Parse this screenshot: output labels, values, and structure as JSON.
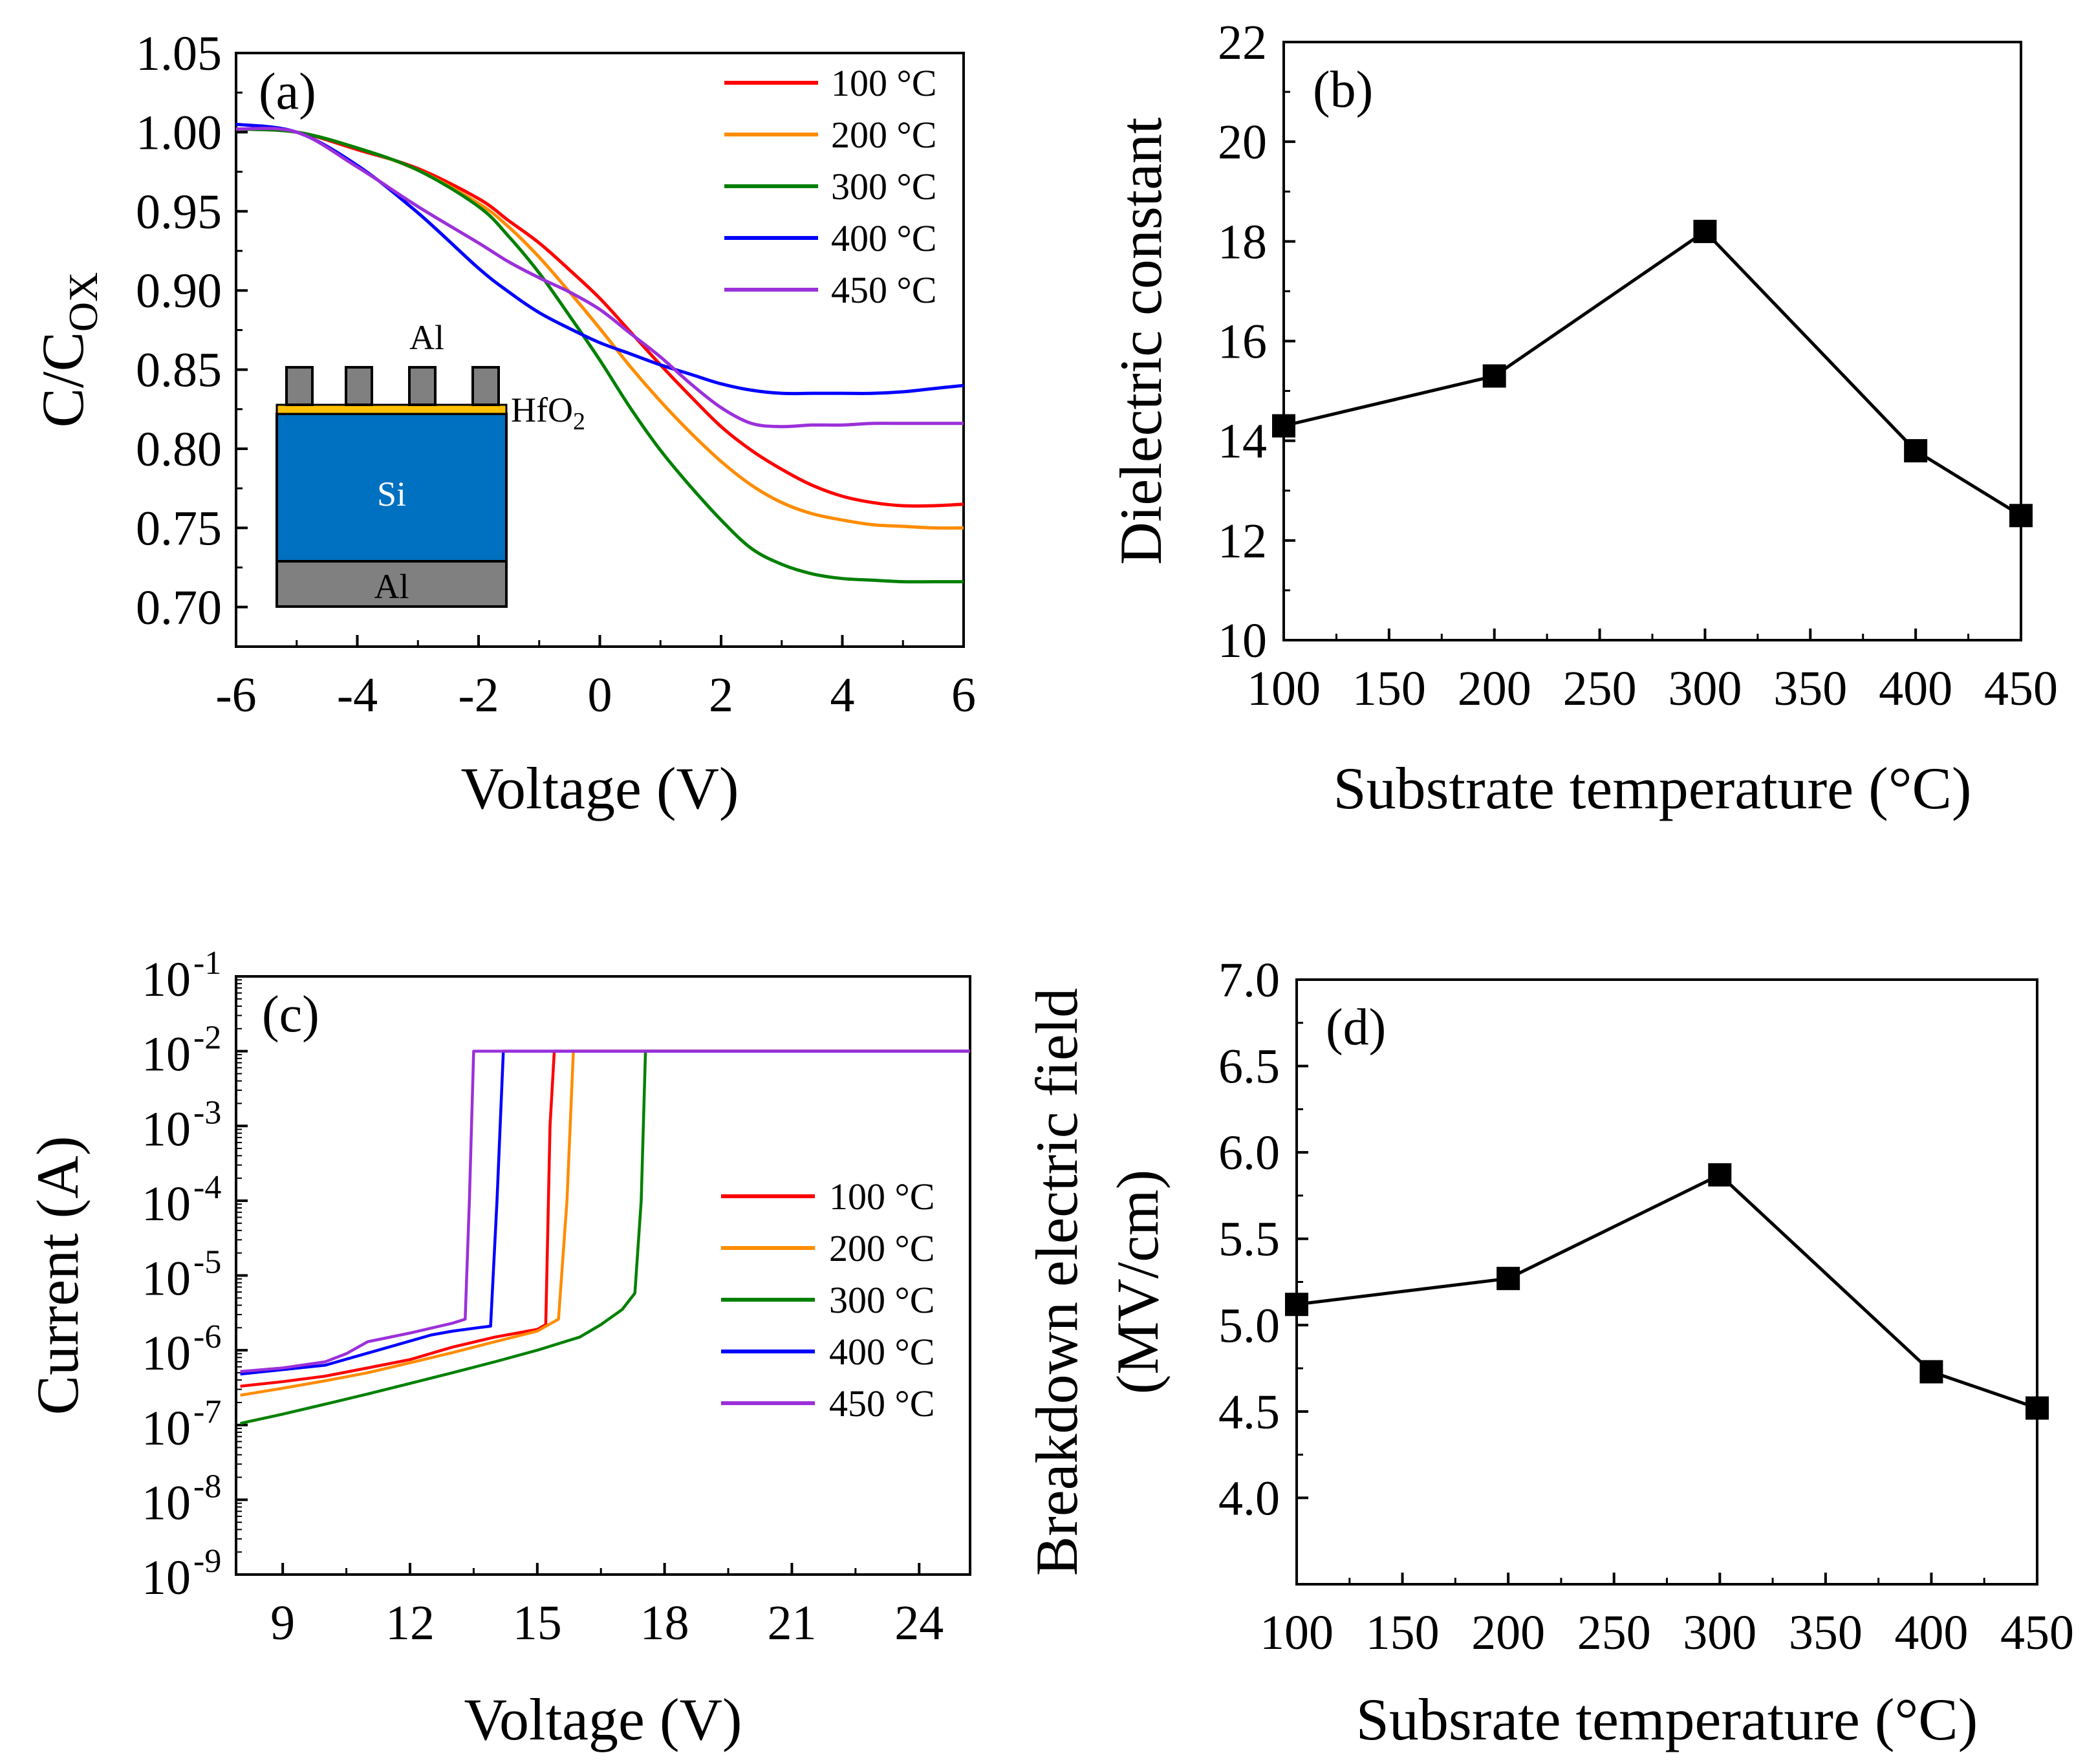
{
  "chart_data": [
    {
      "id": "a",
      "type": "line",
      "panel_label": "(a)",
      "xlabel": "Voltage (V)",
      "ylabel": {
        "base": "C/C",
        "sub": "OX"
      },
      "xlim": [
        -6,
        6
      ],
      "ylim": [
        0.675,
        1.05
      ],
      "xticks": [
        -6,
        -4,
        -2,
        0,
        2,
        4,
        6
      ],
      "yticks": [
        0.7,
        0.75,
        0.8,
        0.85,
        0.9,
        0.95,
        1.0,
        1.05
      ],
      "ytick_format": "2dp",
      "legend_position": "top-right",
      "series": [
        {
          "name": "100 °C",
          "color": "#ff0000",
          "x": [
            -6,
            -5,
            -4,
            -3,
            -2,
            -1.5,
            -1,
            -0.5,
            0,
            0.5,
            1,
            1.5,
            2,
            2.5,
            3,
            3.5,
            4,
            4.5,
            5,
            5.5,
            6
          ],
          "y": [
            1.002,
            1.0,
            0.989,
            0.977,
            0.958,
            0.944,
            0.93,
            0.913,
            0.895,
            0.874,
            0.853,
            0.833,
            0.814,
            0.799,
            0.787,
            0.777,
            0.77,
            0.766,
            0.764,
            0.764,
            0.765
          ]
        },
        {
          "name": "200 °C",
          "color": "#ff8c00",
          "x": [
            -6,
            -5,
            -4,
            -3,
            -2,
            -1.5,
            -1,
            -0.5,
            0,
            0.5,
            1,
            1.5,
            2,
            2.5,
            3,
            3.5,
            4,
            4.5,
            5,
            5.5,
            6
          ],
          "y": [
            1.002,
            1.0,
            0.99,
            0.976,
            0.955,
            0.94,
            0.921,
            0.899,
            0.876,
            0.852,
            0.83,
            0.81,
            0.792,
            0.777,
            0.766,
            0.759,
            0.755,
            0.752,
            0.751,
            0.75,
            0.75
          ]
        },
        {
          "name": "300 °C",
          "color": "#008000",
          "x": [
            -6,
            -5,
            -4,
            -3,
            -2,
            -1.5,
            -1,
            -0.5,
            0,
            0.5,
            1,
            1.5,
            2,
            2.5,
            3,
            3.5,
            4,
            4.5,
            5,
            5.5,
            6
          ],
          "y": [
            1.002,
            1.0,
            0.99,
            0.976,
            0.953,
            0.934,
            0.911,
            0.884,
            0.856,
            0.826,
            0.799,
            0.776,
            0.755,
            0.737,
            0.727,
            0.721,
            0.718,
            0.717,
            0.716,
            0.716,
            0.716
          ]
        },
        {
          "name": "400 °C",
          "color": "#0000ff",
          "x": [
            -6,
            -5,
            -4,
            -3,
            -2,
            -1.5,
            -1,
            -0.5,
            0,
            0.5,
            1,
            1.5,
            2,
            2.5,
            3,
            3.5,
            4,
            4.5,
            5,
            5.5,
            6
          ],
          "y": [
            1.005,
            1.0,
            0.979,
            0.949,
            0.914,
            0.899,
            0.886,
            0.876,
            0.867,
            0.86,
            0.853,
            0.847,
            0.841,
            0.837,
            0.835,
            0.835,
            0.835,
            0.835,
            0.836,
            0.838,
            0.84
          ]
        },
        {
          "name": "450 °C",
          "color": "#9b30d9",
          "x": [
            -6,
            -5,
            -4,
            -3,
            -2,
            -1.5,
            -1,
            -0.5,
            0,
            0.5,
            1,
            1.5,
            2,
            2.5,
            3,
            3.5,
            4,
            4.5,
            5,
            5.5,
            6
          ],
          "y": [
            1.002,
            1.0,
            0.978,
            0.953,
            0.93,
            0.918,
            0.908,
            0.899,
            0.888,
            0.873,
            0.858,
            0.841,
            0.826,
            0.816,
            0.814,
            0.815,
            0.815,
            0.816,
            0.816,
            0.816,
            0.816
          ]
        }
      ],
      "inset": {
        "top_contact": "Al",
        "oxide": "HfO",
        "oxide_sub": "2",
        "substrate": "Si",
        "bottom_contact": "Al",
        "colors": {
          "metal": "#808080",
          "oxide": "#ffc000",
          "substrate": "#0070c0"
        }
      }
    },
    {
      "id": "b",
      "type": "line",
      "panel_label": "(b)",
      "xlabel": "Substrate temperature (°C)",
      "ylabel": "Dielectric constant",
      "xlim": [
        100,
        450
      ],
      "ylim": [
        10,
        22
      ],
      "xticks": [
        100,
        150,
        200,
        250,
        300,
        350,
        400,
        450
      ],
      "yticks": [
        10,
        12,
        14,
        16,
        18,
        20,
        22
      ],
      "ytick_format": "int",
      "marker": "square",
      "series": [
        {
          "name": "",
          "color": "#000000",
          "x": [
            100,
            200,
            300,
            400,
            450
          ],
          "y": [
            14.3,
            15.3,
            18.2,
            13.8,
            12.5
          ]
        }
      ]
    },
    {
      "id": "c",
      "type": "line",
      "panel_label": "(c)",
      "xlabel": "Voltage (V)",
      "ylabel": "Current (A)",
      "xlim": [
        7.9,
        25.2
      ],
      "ylog": true,
      "ylim_exp": [
        -9,
        -1
      ],
      "xticks": [
        9,
        12,
        15,
        18,
        21,
        24
      ],
      "yticks_exp": [
        -9,
        -8,
        -7,
        -6,
        -5,
        -4,
        -3,
        -2,
        -1
      ],
      "legend_position": "middle-right",
      "series": [
        {
          "name": "100 °C",
          "color": "#ff0000",
          "x": [
            8,
            9,
            10,
            11,
            12,
            13,
            14,
            15,
            15.2,
            15.3,
            15.4,
            25.2
          ],
          "y": [
            3.3e-07,
            3.8e-07,
            4.5e-07,
            5.8e-07,
            7.5e-07,
            1.1e-06,
            1.5e-06,
            1.9e-06,
            2.2e-06,
            0.001,
            0.01,
            0.01
          ]
        },
        {
          "name": "200 °C",
          "color": "#ff8c00",
          "x": [
            8,
            9,
            10,
            11,
            12,
            13,
            14,
            15,
            15.5,
            15.7,
            15.85,
            25.2
          ],
          "y": [
            2.5e-07,
            3.1e-07,
            3.9e-07,
            5e-07,
            6.8e-07,
            9.3e-07,
            1.3e-06,
            1.8e-06,
            2.6e-06,
            0.0001,
            0.01,
            0.01
          ]
        },
        {
          "name": "300 °C",
          "color": "#008000",
          "x": [
            8,
            9,
            10,
            11,
            12,
            13,
            14,
            15,
            16,
            16.5,
            17,
            17.3,
            17.45,
            17.55,
            25.2
          ],
          "y": [
            1.05e-07,
            1.4e-07,
            1.9e-07,
            2.6e-07,
            3.6e-07,
            5e-07,
            7e-07,
            1e-06,
            1.5e-06,
            2.2e-06,
            3.5e-06,
            5.8e-06,
            0.0001,
            0.01,
            0.01
          ]
        },
        {
          "name": "400 °C",
          "color": "#0000ff",
          "x": [
            8,
            9,
            10,
            10.8,
            11.5,
            12.5,
            13,
            13.6,
            13.9,
            14.05,
            14.2,
            25.2
          ],
          "y": [
            4.8e-07,
            5.5e-07,
            6.3e-07,
            8.5e-07,
            1.1e-06,
            1.6e-06,
            1.8e-06,
            2e-06,
            2.1e-06,
            0.0001,
            0.01,
            0.01
          ]
        },
        {
          "name": "450 °C",
          "color": "#9b30d9",
          "x": [
            8,
            9,
            10,
            10.5,
            11,
            12,
            13,
            13.3,
            13.4,
            13.5,
            25.2
          ],
          "y": [
            5.2e-07,
            5.8e-07,
            7e-07,
            9e-07,
            1.3e-06,
            1.7e-06,
            2.3e-06,
            2.6e-06,
            0.0001,
            0.01,
            0.01
          ]
        }
      ]
    },
    {
      "id": "d",
      "type": "line",
      "panel_label": "(d)",
      "xlabel": "Subsrate temperature (°C)",
      "ylabel_lines": [
        "Breakdown electric field",
        "(MV/cm)"
      ],
      "xlim": [
        100,
        450
      ],
      "ylim": [
        3.5,
        7.0
      ],
      "xticks": [
        100,
        150,
        200,
        250,
        300,
        350,
        400,
        450
      ],
      "yticks": [
        4.0,
        4.5,
        5.0,
        5.5,
        6.0,
        6.5,
        7.0
      ],
      "ytick_format": "1dp",
      "marker": "square",
      "series": [
        {
          "name": "",
          "color": "#000000",
          "x": [
            100,
            200,
            300,
            400,
            450
          ],
          "y": [
            5.12,
            5.27,
            5.87,
            4.73,
            4.52
          ]
        }
      ]
    }
  ]
}
